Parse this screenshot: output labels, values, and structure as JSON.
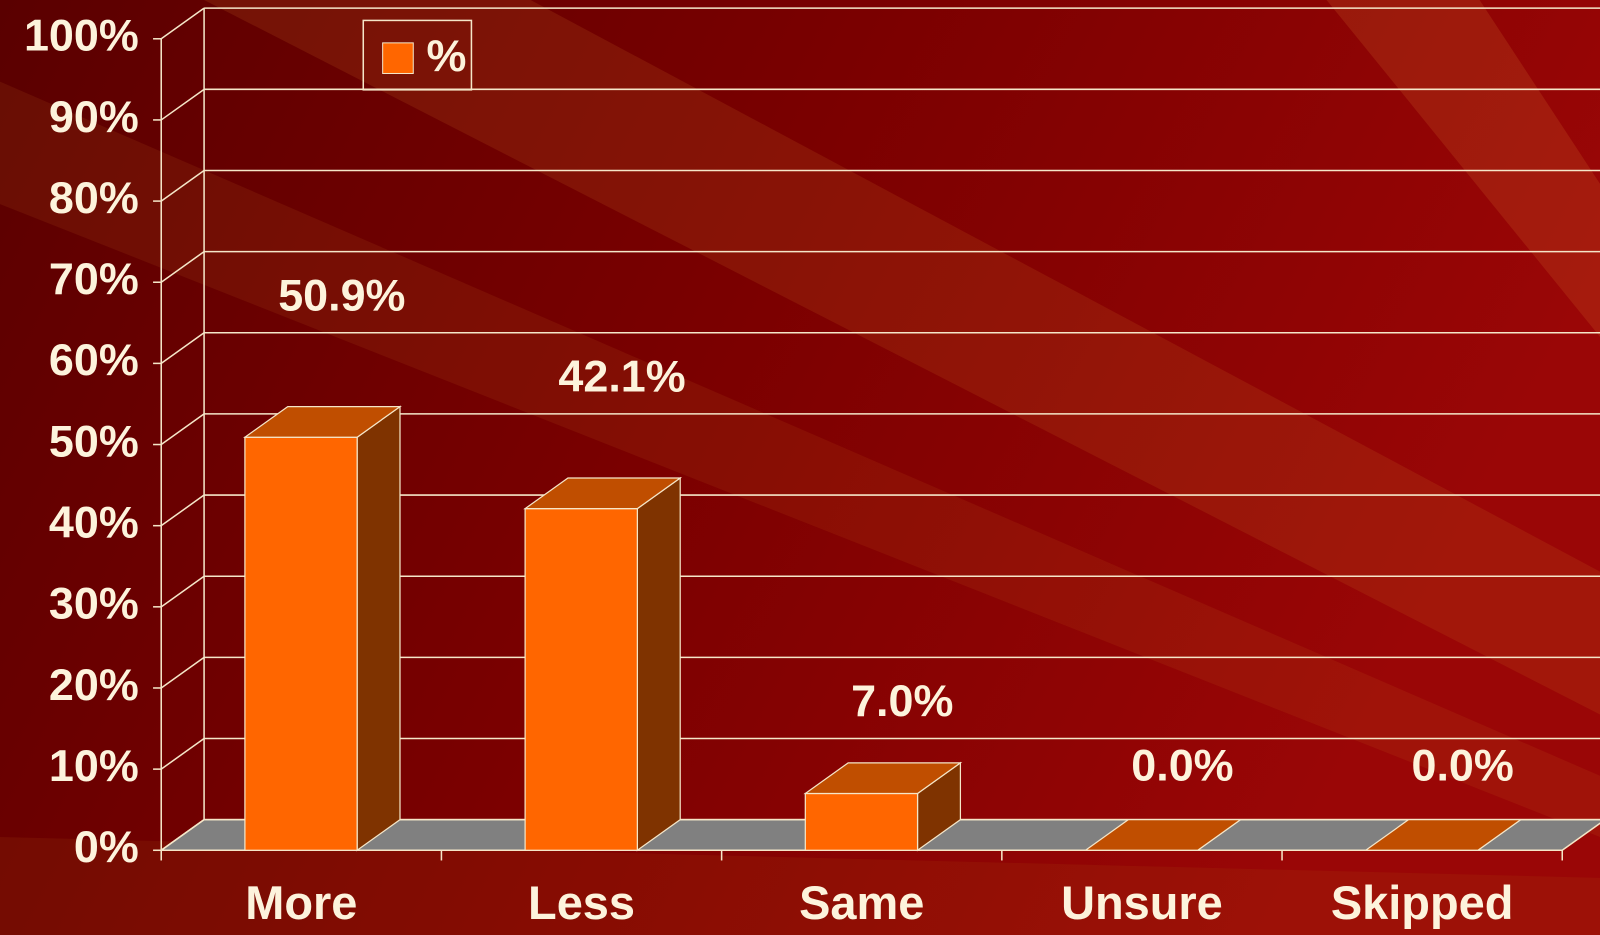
{
  "chart_data": {
    "type": "bar3d",
    "categories": [
      "More",
      "Less",
      "Same",
      "Unsure",
      "Skipped"
    ],
    "series": [
      {
        "name": "%",
        "color": "#ff6600",
        "values": [
          50.9,
          42.1,
          7.0,
          0.0,
          0.0
        ],
        "value_labels": [
          "50.9%",
          "42.1%",
          "7.0%",
          "0.0%",
          "0.0%"
        ]
      }
    ],
    "ylim": [
      0,
      100
    ],
    "yticks": [
      {
        "value": 0,
        "label": "0%"
      },
      {
        "value": 10,
        "label": "10%"
      },
      {
        "value": 20,
        "label": "20%"
      },
      {
        "value": 30,
        "label": "30%"
      },
      {
        "value": 40,
        "label": "40%"
      },
      {
        "value": 50,
        "label": "50%"
      },
      {
        "value": 60,
        "label": "60%"
      },
      {
        "value": 70,
        "label": "70%"
      },
      {
        "value": 80,
        "label": "80%"
      },
      {
        "value": 90,
        "label": "90%"
      },
      {
        "value": 100,
        "label": "100%"
      }
    ],
    "grid": true,
    "legend": "top-left"
  }
}
